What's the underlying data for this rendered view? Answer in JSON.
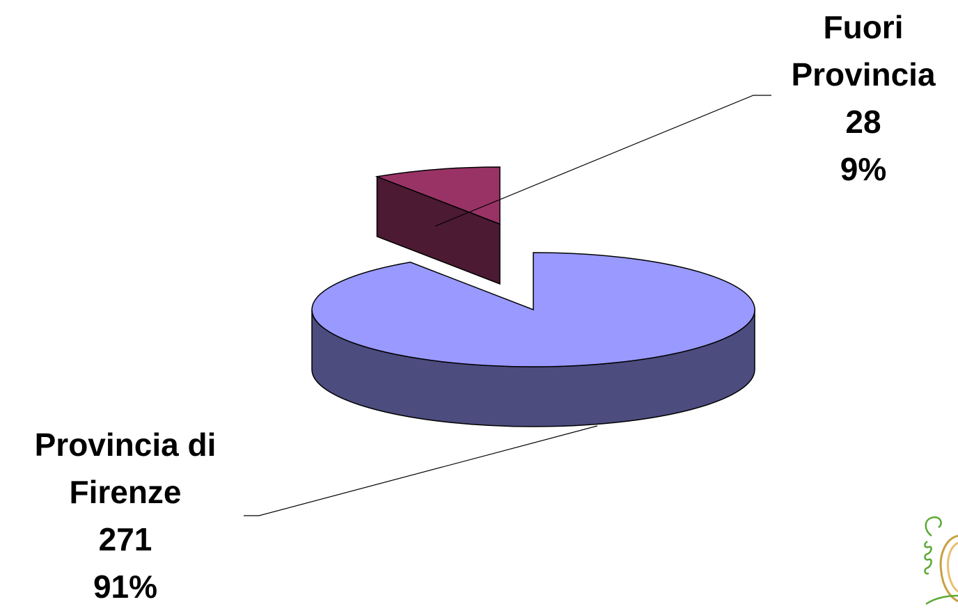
{
  "chart_data": {
    "type": "pie",
    "title": "",
    "slices": [
      {
        "label_lines": [
          "Provincia di",
          "Firenze"
        ],
        "value": 271,
        "value_label": "271",
        "percent_label": "91%"
      },
      {
        "label_lines": [
          "Fuori",
          "Provincia"
        ],
        "value": 28,
        "value_label": "28",
        "percent_label": "9%"
      }
    ],
    "exploded_slice": 1,
    "three_d": true,
    "legend": "none"
  },
  "colors": {
    "florence_top": "#9999ff",
    "florence_side": "#4c4c7f",
    "outside_top": "#993366",
    "outside_side": "#4c1a33",
    "logo": "#5aa832"
  }
}
